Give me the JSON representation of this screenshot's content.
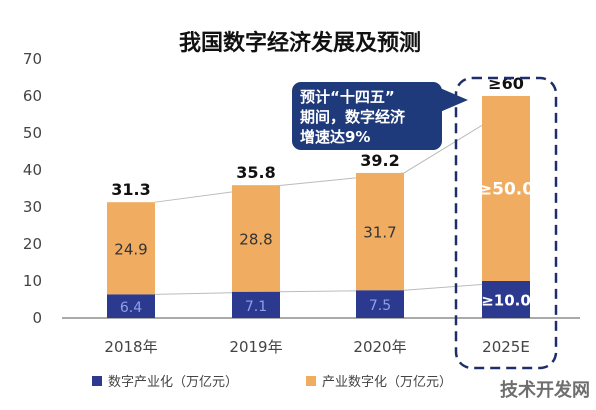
{
  "chart_data": {
    "type": "bar",
    "title": "我国数字经济发展及预测",
    "categories": [
      "2018年",
      "2019年",
      "2020年",
      "2025E"
    ],
    "series": [
      {
        "name": "数字产业化（万亿元）",
        "values": [
          6.4,
          7.1,
          7.5,
          10.0
        ],
        "labels": [
          "6.4",
          "7.1",
          "7.5",
          "≥10.0"
        ],
        "color": "#2b3a8f"
      },
      {
        "name": "产业数字化（万亿元）",
        "values": [
          24.9,
          28.8,
          31.7,
          50.0
        ],
        "labels": [
          "24.9",
          "28.8",
          "31.7",
          "≥50.0"
        ],
        "color": "#f0ad62"
      }
    ],
    "totals": [
      31.3,
      35.8,
      39.2,
      60
    ],
    "total_labels": [
      "31.3",
      "35.8",
      "39.2",
      "≥60"
    ],
    "ylim": [
      0,
      70
    ],
    "yticks": [
      "0",
      "10",
      "20",
      "30",
      "40",
      "50",
      "60",
      "70"
    ],
    "xlabel": "",
    "ylabel": "",
    "grid": false,
    "legend_position": "bottom",
    "stacked": true
  },
  "callout": {
    "lines": [
      "预计“十四五”",
      "期间，数字经济",
      "增速达9%"
    ],
    "bg_color": "#1f3a7a",
    "text_color": "#ffffff"
  },
  "watermark": "技术开发网",
  "colors": {
    "axis": "#555555",
    "trend_line": "#bbbbbb",
    "highlight_border": "#1f2e6b"
  }
}
